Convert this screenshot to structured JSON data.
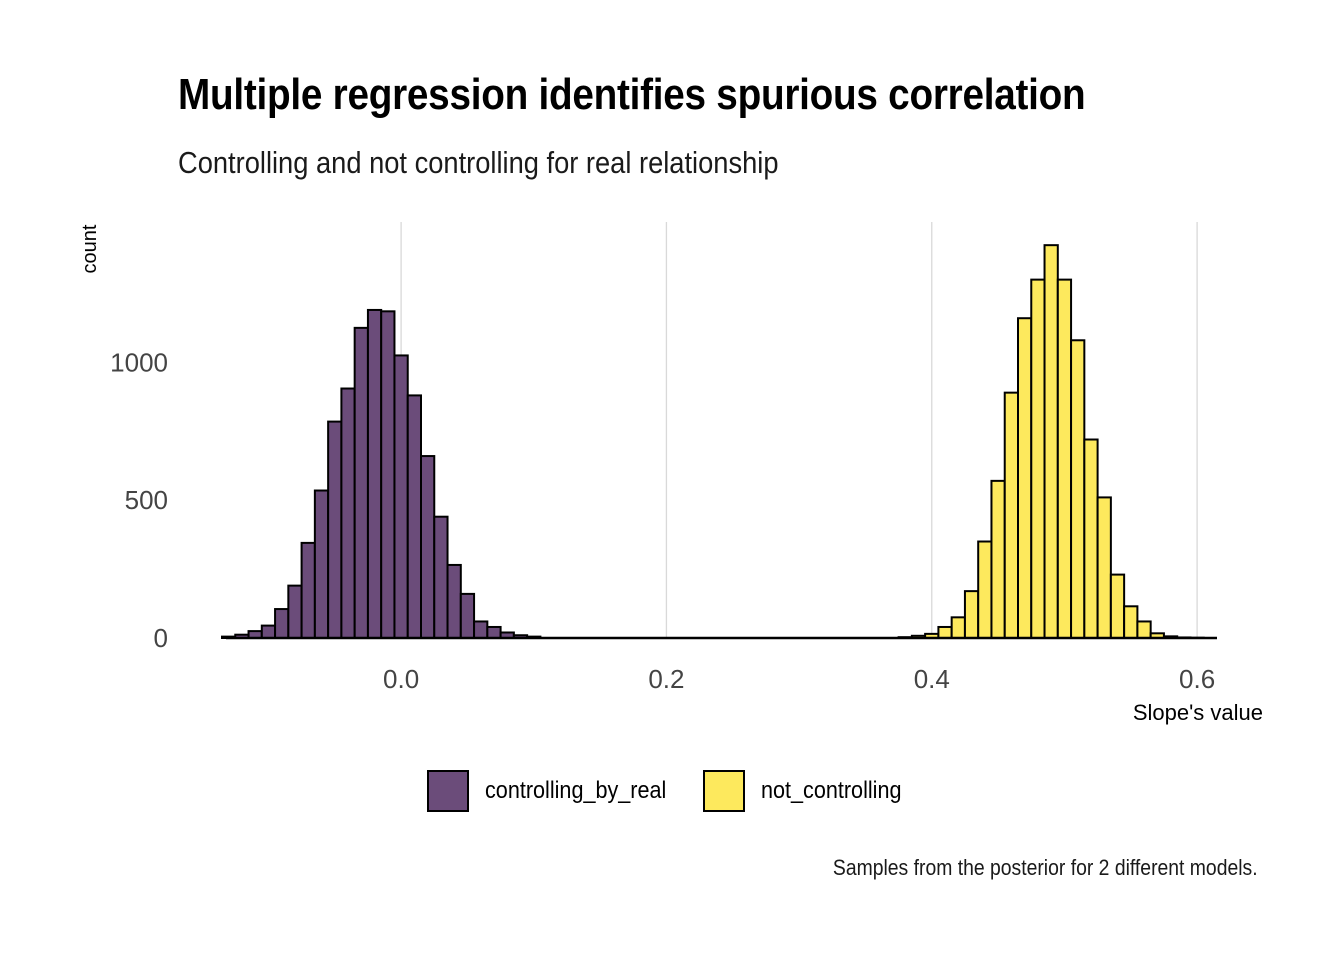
{
  "chart_data": {
    "type": "histogram",
    "title": "Multiple regression identifies spurious correlation",
    "subtitle": "Controlling and not controlling for real relationship",
    "caption": "Samples from the posterior for 2 different models.",
    "xlabel": "Slope's value",
    "ylabel": "count",
    "xlim": [
      -0.135,
      0.615
    ],
    "ylim": [
      0,
      1480
    ],
    "x_ticks": [
      {
        "value": 0.0,
        "label": "0.0"
      },
      {
        "value": 0.2,
        "label": "0.2"
      },
      {
        "value": 0.4,
        "label": "0.4"
      },
      {
        "value": 0.6,
        "label": "0.6"
      }
    ],
    "y_ticks": [
      {
        "value": 0,
        "label": "0"
      },
      {
        "value": 500,
        "label": "500"
      },
      {
        "value": 1000,
        "label": "1000"
      }
    ],
    "grid": {
      "vertical_major": true,
      "horizontal": false
    },
    "legend": {
      "position": "bottom"
    },
    "series": [
      {
        "name": "controlling_by_real",
        "color": "#6b4c7a",
        "bin_width": 0.01,
        "bin_starts": [
          -0.135,
          -0.125,
          -0.115,
          -0.105,
          -0.095,
          -0.085,
          -0.075,
          -0.065,
          -0.055,
          -0.045,
          -0.035,
          -0.025,
          -0.015,
          -0.005,
          0.005,
          0.015,
          0.025,
          0.035,
          0.045,
          0.055,
          0.065,
          0.075,
          0.085,
          0.095
        ],
        "counts": [
          5,
          12,
          25,
          45,
          105,
          190,
          345,
          535,
          785,
          905,
          1125,
          1190,
          1185,
          1025,
          880,
          660,
          440,
          265,
          160,
          60,
          40,
          20,
          10,
          5
        ]
      },
      {
        "name": "not_controlling",
        "color": "#fde95d",
        "bin_width": 0.01,
        "bin_starts": [
          0.375,
          0.385,
          0.395,
          0.405,
          0.415,
          0.425,
          0.435,
          0.445,
          0.455,
          0.465,
          0.475,
          0.485,
          0.495,
          0.505,
          0.515,
          0.525,
          0.535,
          0.545,
          0.555,
          0.565,
          0.575,
          0.585,
          0.595
        ],
        "counts": [
          3,
          8,
          15,
          40,
          75,
          170,
          350,
          570,
          890,
          1160,
          1300,
          1425,
          1300,
          1080,
          720,
          510,
          230,
          115,
          60,
          17,
          6,
          2,
          1
        ]
      }
    ]
  }
}
